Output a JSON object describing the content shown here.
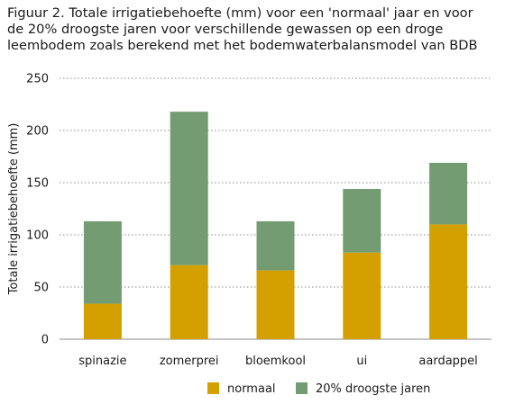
{
  "chart_data": {
    "type": "bar",
    "stacked": true,
    "title_lines": [
      "Figuur 2. Totale irrigatiebehoefte (mm) voor een 'normaal' jaar en voor",
      "de 20% droogste jaren voor verschillende gewassen op een droge",
      "leembodem zoals berekend met het bodemwaterbalansmodel van BDB"
    ],
    "ylabel": "Totale irrigatiebehoefte (mm)",
    "xlabel": "",
    "ylim": [
      0,
      250
    ],
    "yticks": [
      0,
      50,
      100,
      150,
      200,
      250
    ],
    "grid": "horizontal-dotted",
    "legend_position": "bottom",
    "categories": [
      "spinazie",
      "zomerprei",
      "bloemkool",
      "ui",
      "aardappel"
    ],
    "series": [
      {
        "name": "normaal",
        "color": "#d4a000",
        "values": [
          34,
          71,
          66,
          83,
          110
        ]
      },
      {
        "name": "20% droogste jaren",
        "color": "#739c73",
        "values": [
          79,
          147,
          47,
          61,
          59
        ]
      }
    ]
  }
}
